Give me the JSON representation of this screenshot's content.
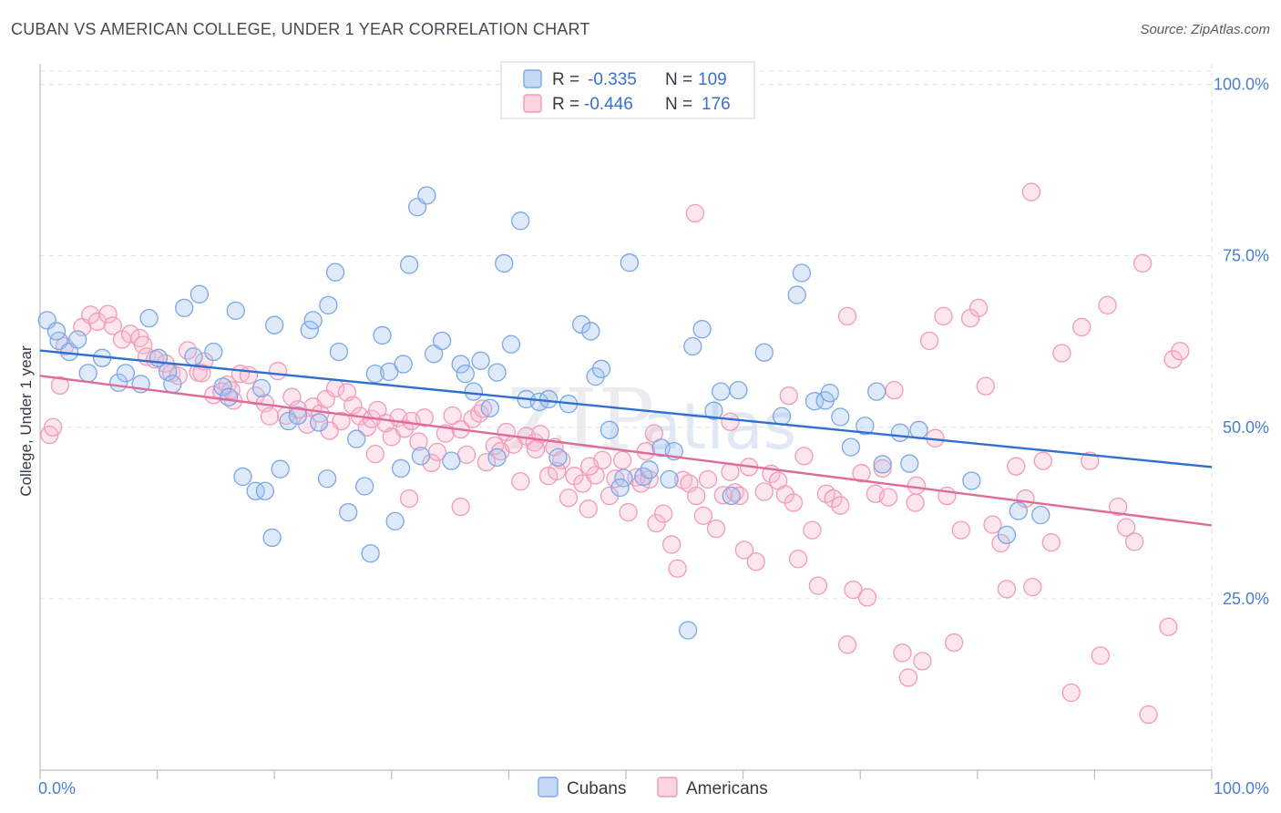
{
  "header": {
    "title": "CUBAN VS AMERICAN COLLEGE, UNDER 1 YEAR CORRELATION CHART",
    "source": "Source: ZipAtlas.com"
  },
  "legend": {
    "rows": [
      {
        "r_label": "R =",
        "r_value": "-0.335",
        "n_label": "N =",
        "n_value": "109"
      },
      {
        "r_label": "R =",
        "r_value": "-0.446",
        "n_label": "N =",
        "n_value": "176"
      }
    ],
    "bottom": [
      "Cubans",
      "Americans"
    ]
  },
  "watermark": {
    "zip": "ZIP",
    "atlas": "atlas"
  },
  "chart_data": {
    "type": "scatter",
    "ylabel": "College, Under 1 year",
    "xlim": [
      0,
      100
    ],
    "ylim": [
      0,
      103
    ],
    "x_tick_labels": [
      {
        "value": 0,
        "label": "0.0%"
      },
      {
        "value": 100,
        "label": "100.0%"
      }
    ],
    "y_tick_labels": [
      {
        "value": 25,
        "label": "25.0%"
      },
      {
        "value": 50,
        "label": "50.0%"
      },
      {
        "value": 75,
        "label": "75.0%"
      },
      {
        "value": 100,
        "label": "100.0%"
      }
    ],
    "grid": true,
    "colors": {
      "cubans": "#7aa7e8",
      "cubans_line": "#2f6fd0",
      "americans": "#f29ab8",
      "americans_line": "#e06a98"
    },
    "series": [
      {
        "name": "Cubans",
        "trend": {
          "x": [
            0,
            100
          ],
          "y": [
            61.2,
            44.2
          ]
        },
        "points": [
          [
            0.6,
            65.6
          ],
          [
            1.6,
            62.6
          ],
          [
            1.4,
            64.0
          ],
          [
            2.5,
            61.0
          ],
          [
            3.2,
            62.8
          ],
          [
            4.1,
            57.9
          ],
          [
            5.3,
            60.1
          ],
          [
            6.7,
            56.5
          ],
          [
            7.3,
            57.9
          ],
          [
            8.6,
            56.3
          ],
          [
            9.3,
            65.9
          ],
          [
            10.1,
            60.1
          ],
          [
            10.9,
            58.1
          ],
          [
            11.3,
            56.3
          ],
          [
            12.3,
            67.4
          ],
          [
            13.1,
            60.3
          ],
          [
            13.6,
            69.4
          ],
          [
            14.8,
            61.0
          ],
          [
            15.6,
            55.9
          ],
          [
            16.1,
            54.4
          ],
          [
            16.7,
            67.0
          ],
          [
            17.3,
            42.8
          ],
          [
            18.4,
            40.7
          ],
          [
            18.9,
            55.7
          ],
          [
            19.2,
            40.7
          ],
          [
            20.0,
            64.9
          ],
          [
            19.8,
            33.9
          ],
          [
            20.5,
            43.9
          ],
          [
            21.2,
            50.9
          ],
          [
            22.0,
            51.7
          ],
          [
            23.0,
            64.2
          ],
          [
            23.3,
            65.6
          ],
          [
            23.8,
            50.7
          ],
          [
            24.6,
            67.8
          ],
          [
            25.2,
            72.6
          ],
          [
            25.5,
            61.0
          ],
          [
            26.3,
            37.6
          ],
          [
            27.0,
            48.3
          ],
          [
            27.7,
            41.4
          ],
          [
            28.2,
            31.6
          ],
          [
            28.6,
            57.8
          ],
          [
            29.2,
            63.4
          ],
          [
            29.8,
            58.1
          ],
          [
            30.3,
            36.3
          ],
          [
            31.0,
            59.2
          ],
          [
            31.5,
            73.7
          ],
          [
            32.2,
            82.1
          ],
          [
            32.5,
            45.8
          ],
          [
            33.0,
            83.8
          ],
          [
            33.6,
            60.7
          ],
          [
            34.3,
            62.6
          ],
          [
            35.1,
            45.1
          ],
          [
            35.9,
            59.2
          ],
          [
            36.3,
            57.8
          ],
          [
            37.0,
            55.2
          ],
          [
            37.6,
            59.7
          ],
          [
            38.4,
            52.8
          ],
          [
            39.0,
            45.6
          ],
          [
            39.6,
            73.9
          ],
          [
            40.2,
            62.1
          ],
          [
            41.0,
            80.1
          ],
          [
            41.5,
            54.1
          ],
          [
            42.6,
            53.7
          ],
          [
            43.4,
            54.1
          ],
          [
            44.2,
            45.6
          ],
          [
            45.1,
            53.4
          ],
          [
            46.2,
            65.0
          ],
          [
            47.0,
            64.0
          ],
          [
            47.4,
            57.4
          ],
          [
            47.9,
            58.5
          ],
          [
            48.6,
            49.6
          ],
          [
            49.8,
            42.6
          ],
          [
            49.5,
            41.2
          ],
          [
            50.3,
            74.0
          ],
          [
            51.5,
            42.8
          ],
          [
            52.0,
            43.8
          ],
          [
            53.0,
            47.0
          ],
          [
            53.7,
            42.4
          ],
          [
            54.1,
            46.5
          ],
          [
            55.7,
            61.8
          ],
          [
            55.3,
            20.4
          ],
          [
            56.5,
            64.3
          ],
          [
            57.5,
            52.4
          ],
          [
            58.1,
            55.2
          ],
          [
            59.0,
            40.0
          ],
          [
            59.6,
            55.4
          ],
          [
            61.8,
            60.9
          ],
          [
            63.3,
            51.6
          ],
          [
            64.6,
            69.3
          ],
          [
            65.0,
            72.5
          ],
          [
            66.1,
            53.8
          ],
          [
            67.0,
            53.9
          ],
          [
            67.4,
            55.0
          ],
          [
            68.3,
            51.5
          ],
          [
            69.2,
            47.1
          ],
          [
            70.4,
            50.2
          ],
          [
            71.4,
            55.2
          ],
          [
            71.9,
            44.6
          ],
          [
            73.4,
            49.2
          ],
          [
            74.2,
            44.7
          ],
          [
            75.0,
            49.6
          ],
          [
            79.5,
            42.2
          ],
          [
            82.5,
            34.3
          ],
          [
            83.5,
            37.8
          ],
          [
            85.4,
            37.2
          ],
          [
            39.0,
            58.0
          ],
          [
            30.8,
            44.0
          ],
          [
            24.5,
            42.5
          ]
        ]
      },
      {
        "name": "Americans",
        "trend": {
          "x": [
            0,
            100
          ],
          "y": [
            57.5,
            35.7
          ]
        },
        "points": [
          [
            0.8,
            48.9
          ],
          [
            1.1,
            50.0
          ],
          [
            1.7,
            56.1
          ],
          [
            2.1,
            61.8
          ],
          [
            3.6,
            64.6
          ],
          [
            4.3,
            66.4
          ],
          [
            4.9,
            65.4
          ],
          [
            5.8,
            66.5
          ],
          [
            6.2,
            64.8
          ],
          [
            7.0,
            62.8
          ],
          [
            7.7,
            63.6
          ],
          [
            8.5,
            63.0
          ],
          [
            8.8,
            62.0
          ],
          [
            9.1,
            60.3
          ],
          [
            9.8,
            59.9
          ],
          [
            10.7,
            59.3
          ],
          [
            11.2,
            57.9
          ],
          [
            11.8,
            57.5
          ],
          [
            12.6,
            61.2
          ],
          [
            13.5,
            58.0
          ],
          [
            14.0,
            59.6
          ],
          [
            14.8,
            54.7
          ],
          [
            15.5,
            55.2
          ],
          [
            16.0,
            56.2
          ],
          [
            16.5,
            53.9
          ],
          [
            17.1,
            57.8
          ],
          [
            17.8,
            57.6
          ],
          [
            18.4,
            54.6
          ],
          [
            19.2,
            53.5
          ],
          [
            19.6,
            51.6
          ],
          [
            20.3,
            58.2
          ],
          [
            21.0,
            51.7
          ],
          [
            21.5,
            54.4
          ],
          [
            22.0,
            52.6
          ],
          [
            22.8,
            50.4
          ],
          [
            23.3,
            53.0
          ],
          [
            23.9,
            52.0
          ],
          [
            24.4,
            54.1
          ],
          [
            25.2,
            55.7
          ],
          [
            25.7,
            50.9
          ],
          [
            26.2,
            55.1
          ],
          [
            26.7,
            53.2
          ],
          [
            27.3,
            51.6
          ],
          [
            27.9,
            50.0
          ],
          [
            28.3,
            51.2
          ],
          [
            28.8,
            52.5
          ],
          [
            29.5,
            50.6
          ],
          [
            30.0,
            48.6
          ],
          [
            30.6,
            51.4
          ],
          [
            31.1,
            49.8
          ],
          [
            31.7,
            50.9
          ],
          [
            32.3,
            47.9
          ],
          [
            32.8,
            51.4
          ],
          [
            33.4,
            44.8
          ],
          [
            33.9,
            46.4
          ],
          [
            34.6,
            49.1
          ],
          [
            35.2,
            51.7
          ],
          [
            35.9,
            49.7
          ],
          [
            36.4,
            46.0
          ],
          [
            36.9,
            51.2
          ],
          [
            37.5,
            52.0
          ],
          [
            38.1,
            44.9
          ],
          [
            38.8,
            47.3
          ],
          [
            39.3,
            46.5
          ],
          [
            39.8,
            49.3
          ],
          [
            40.4,
            47.5
          ],
          [
            41.0,
            42.1
          ],
          [
            41.5,
            48.7
          ],
          [
            42.2,
            47.8
          ],
          [
            42.7,
            49.0
          ],
          [
            43.4,
            42.9
          ],
          [
            43.9,
            47.1
          ],
          [
            44.5,
            45.2
          ],
          [
            45.1,
            39.7
          ],
          [
            45.6,
            42.9
          ],
          [
            46.3,
            41.8
          ],
          [
            46.8,
            38.1
          ],
          [
            47.4,
            43.0
          ],
          [
            48.0,
            45.2
          ],
          [
            48.6,
            40.0
          ],
          [
            49.1,
            42.5
          ],
          [
            49.7,
            45.2
          ],
          [
            50.2,
            37.6
          ],
          [
            50.9,
            42.7
          ],
          [
            51.3,
            41.8
          ],
          [
            52.0,
            42.4
          ],
          [
            52.6,
            36.0
          ],
          [
            53.2,
            37.4
          ],
          [
            53.9,
            32.9
          ],
          [
            54.4,
            29.4
          ],
          [
            54.9,
            42.3
          ],
          [
            55.4,
            41.8
          ],
          [
            56.0,
            40.0
          ],
          [
            56.6,
            37.1
          ],
          [
            57.0,
            42.4
          ],
          [
            57.7,
            35.2
          ],
          [
            58.3,
            40.1
          ],
          [
            58.9,
            43.5
          ],
          [
            59.3,
            40.5
          ],
          [
            60.1,
            32.1
          ],
          [
            60.5,
            44.2
          ],
          [
            61.1,
            30.4
          ],
          [
            61.8,
            40.6
          ],
          [
            62.4,
            43.2
          ],
          [
            63.0,
            42.2
          ],
          [
            63.6,
            40.2
          ],
          [
            64.3,
            39.0
          ],
          [
            64.7,
            30.8
          ],
          [
            65.2,
            45.8
          ],
          [
            65.9,
            35.0
          ],
          [
            66.4,
            26.9
          ],
          [
            67.1,
            40.3
          ],
          [
            67.7,
            39.6
          ],
          [
            68.3,
            38.6
          ],
          [
            68.9,
            18.3
          ],
          [
            69.4,
            26.3
          ],
          [
            70.1,
            43.3
          ],
          [
            70.6,
            25.2
          ],
          [
            71.3,
            40.3
          ],
          [
            71.9,
            44.0
          ],
          [
            72.4,
            39.8
          ],
          [
            72.9,
            55.4
          ],
          [
            73.6,
            17.1
          ],
          [
            74.1,
            13.5
          ],
          [
            74.7,
            39.0
          ],
          [
            75.3,
            15.9
          ],
          [
            75.9,
            62.6
          ],
          [
            76.4,
            48.4
          ],
          [
            77.1,
            66.2
          ],
          [
            77.4,
            40.0
          ],
          [
            78.0,
            18.6
          ],
          [
            78.6,
            35.0
          ],
          [
            79.4,
            65.9
          ],
          [
            80.1,
            67.4
          ],
          [
            80.7,
            56.0
          ],
          [
            81.3,
            35.8
          ],
          [
            82.0,
            33.1
          ],
          [
            82.5,
            26.4
          ],
          [
            83.3,
            44.3
          ],
          [
            84.1,
            39.6
          ],
          [
            84.7,
            26.7
          ],
          [
            85.6,
            45.1
          ],
          [
            86.3,
            33.2
          ],
          [
            87.2,
            60.8
          ],
          [
            88.0,
            11.3
          ],
          [
            88.9,
            64.6
          ],
          [
            89.6,
            45.1
          ],
          [
            90.5,
            16.7
          ],
          [
            91.1,
            67.8
          ],
          [
            92.0,
            38.4
          ],
          [
            92.7,
            35.4
          ],
          [
            93.4,
            33.3
          ],
          [
            94.1,
            73.9
          ],
          [
            94.6,
            8.1
          ],
          [
            96.3,
            20.9
          ],
          [
            96.7,
            59.9
          ],
          [
            97.3,
            61.1
          ],
          [
            55.9,
            81.2
          ],
          [
            84.6,
            84.3
          ],
          [
            68.9,
            66.2
          ],
          [
            74.8,
            41.5
          ],
          [
            16.3,
            55.4
          ],
          [
            31.5,
            39.6
          ],
          [
            46.9,
            44.3
          ],
          [
            59.7,
            40.0
          ],
          [
            63.9,
            54.6
          ],
          [
            35.9,
            38.4
          ],
          [
            42.3,
            46.8
          ],
          [
            51.7,
            46.5
          ],
          [
            13.8,
            57.9
          ],
          [
            24.7,
            49.5
          ],
          [
            28.6,
            46.1
          ],
          [
            37.8,
            52.7
          ],
          [
            52.4,
            49.1
          ],
          [
            44.1,
            43.6
          ],
          [
            58.9,
            50.8
          ]
        ]
      }
    ]
  }
}
